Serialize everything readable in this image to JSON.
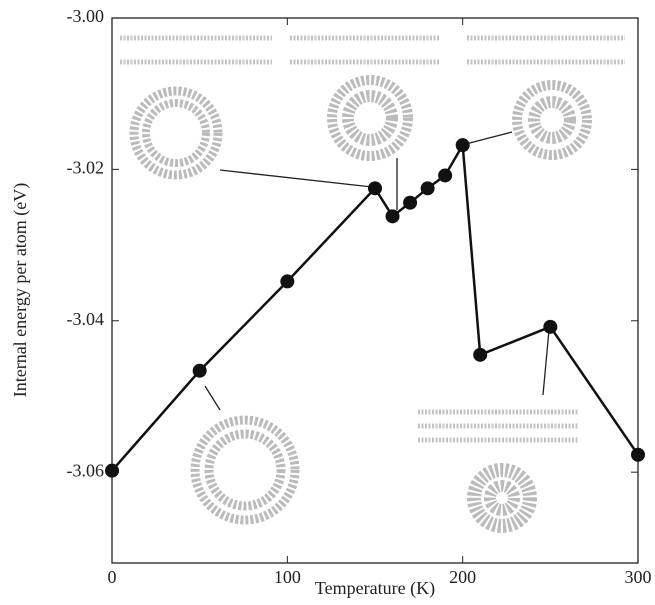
{
  "chart_data": {
    "type": "line",
    "x_label": "Temperature (K)",
    "y_label": "Internal energy per atom (eV)",
    "x": [
      0,
      50,
      100,
      150,
      160,
      170,
      180,
      190,
      200,
      210,
      250,
      300
    ],
    "series": [
      {
        "color": "#111111",
        "values": [
          -3.0598,
          -3.0466,
          -3.0348,
          -3.0225,
          -3.0262,
          -3.0244,
          -3.0225,
          -3.0208,
          -3.0168,
          -3.0445,
          -3.0408,
          -3.0577
        ]
      }
    ],
    "xlim": [
      0,
      300
    ],
    "xticks": [
      0,
      100,
      200,
      300
    ],
    "ylim": [
      -3.072,
      -3.0
    ],
    "yticks": [
      -3.06,
      -3.04,
      -3.02,
      {
        "value": -3,
        "label": "-3.00"
      }
    ]
  }
}
